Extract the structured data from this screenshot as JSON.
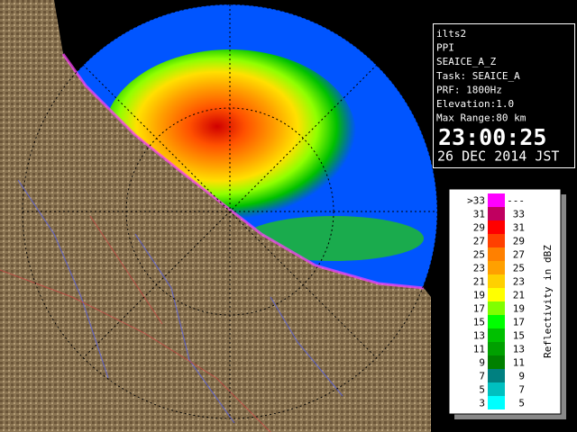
{
  "info": {
    "lines": [
      "ilts2",
      "PPI",
      "SEAICE_A_Z",
      "Task: SEAICE_A",
      "PRF: 1800Hz",
      "Elevation:1.0",
      "Max Range:80 km"
    ],
    "time": "23:00:25",
    "date": "26 DEC 2014 JST"
  },
  "legend": {
    "title": "Reflectivity in dBZ",
    "rows": [
      {
        "low": ">33",
        "high": "---",
        "color": "#ff00ff"
      },
      {
        "low": "31",
        "high": "33",
        "color": "#c00060"
      },
      {
        "low": "29",
        "high": "31",
        "color": "#ff0000"
      },
      {
        "low": "27",
        "high": "29",
        "color": "#ff4000"
      },
      {
        "low": "25",
        "high": "27",
        "color": "#ff8000"
      },
      {
        "low": "23",
        "high": "25",
        "color": "#ffa000"
      },
      {
        "low": "21",
        "high": "23",
        "color": "#ffd000"
      },
      {
        "low": "19",
        "high": "21",
        "color": "#ffff00"
      },
      {
        "low": "17",
        "high": "19",
        "color": "#80ff00"
      },
      {
        "low": "15",
        "high": "17",
        "color": "#00ff00"
      },
      {
        "low": "13",
        "high": "15",
        "color": "#00c000"
      },
      {
        "low": "11",
        "high": "13",
        "color": "#00a000"
      },
      {
        "low": "9",
        "high": "11",
        "color": "#008000"
      },
      {
        "low": "7",
        "high": "9",
        "color": "#008080"
      },
      {
        "low": "5",
        "high": "7",
        "color": "#00c0c0"
      },
      {
        "low": "3",
        "high": "5",
        "color": "#00ffff"
      }
    ]
  }
}
